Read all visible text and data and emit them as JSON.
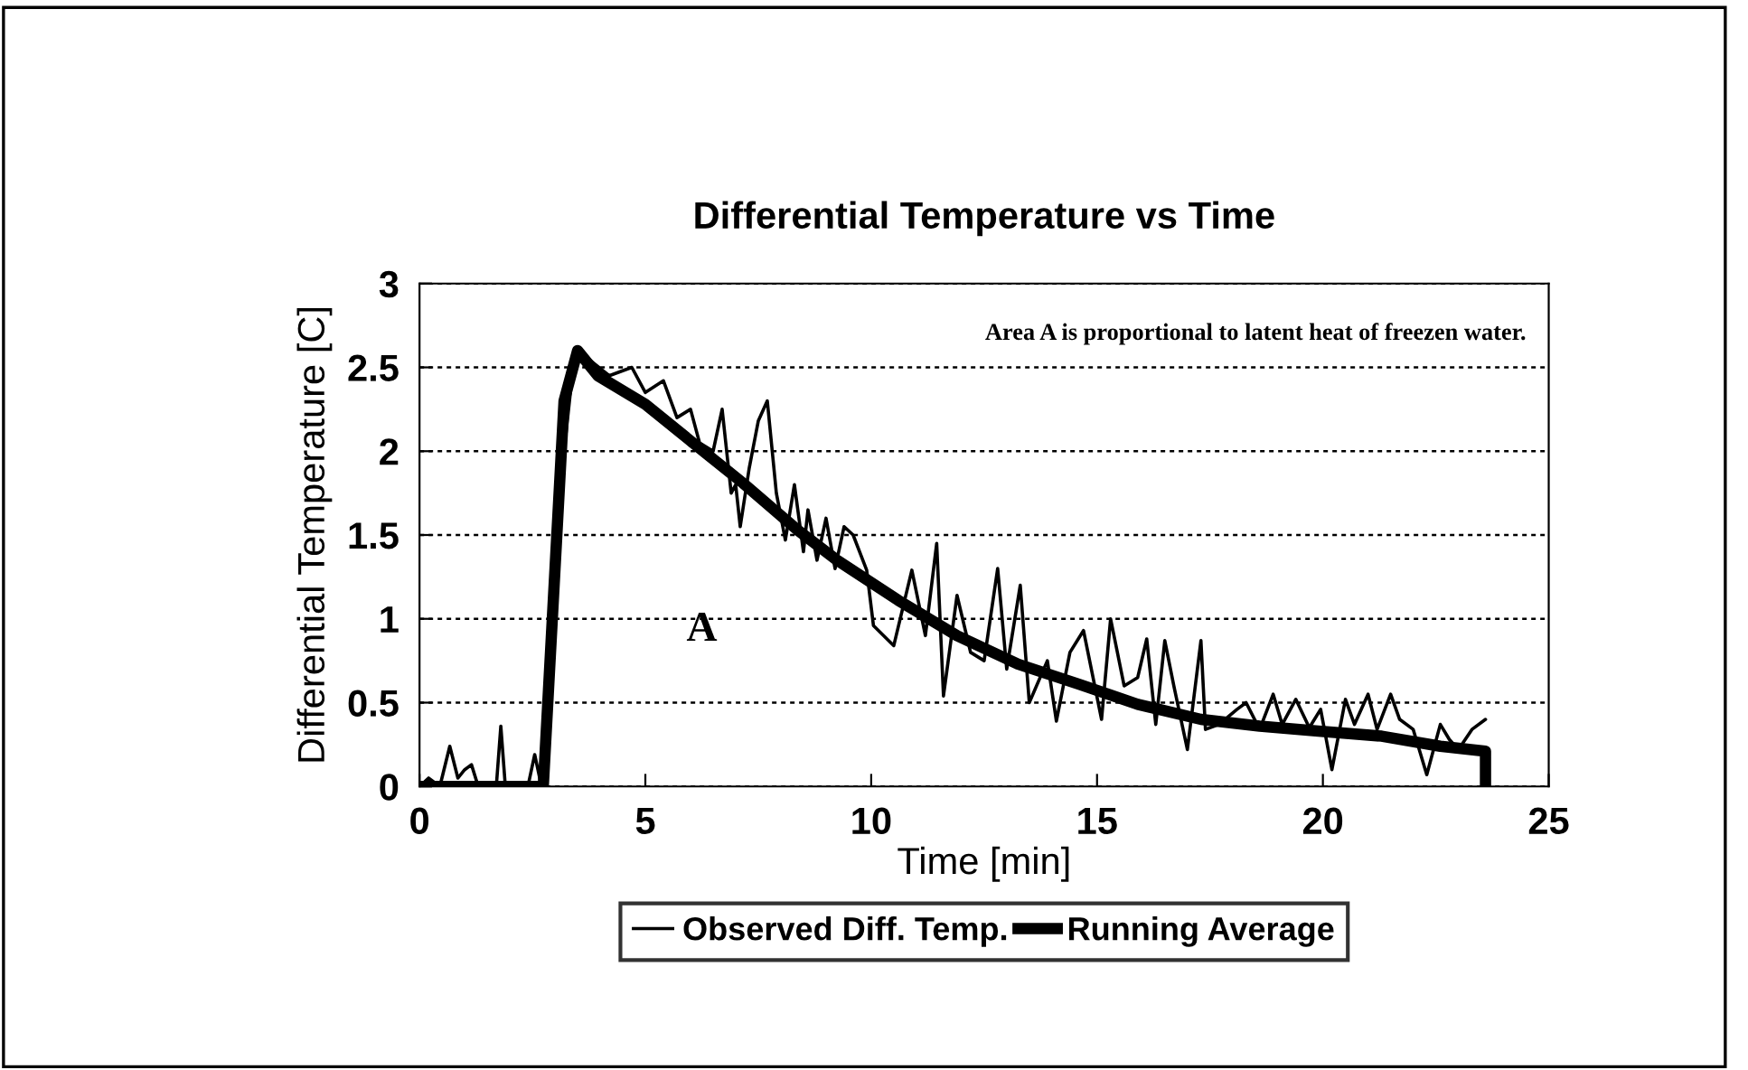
{
  "chart_data": {
    "type": "line",
    "title": "Differential Temperature vs Time",
    "xlabel": "Time [min]",
    "ylabel": "Differential Temperature [C]",
    "xlim": [
      0,
      25
    ],
    "xticks": [
      0,
      5,
      10,
      15,
      20,
      25
    ],
    "ylim": [
      0,
      3
    ],
    "yticks": [
      0,
      0.5,
      1,
      1.5,
      2,
      2.5,
      3
    ],
    "grid": "y",
    "legend": "bottom",
    "line_style": "solid",
    "marker": "none",
    "annotations": [
      "Area A is proportional to latent heat of freezen water.",
      "A"
    ],
    "series": [
      {
        "name": "Observed Diff. Temp.",
        "color": "#000000",
        "x": [
          0,
          0.2,
          0.45,
          0.67,
          0.85,
          1.0,
          1.15,
          1.3,
          1.7,
          1.8,
          1.9,
          2.4,
          2.55,
          2.7,
          2.8,
          3.0,
          3.2,
          3.4,
          3.6,
          4.2,
          4.7,
          5.0,
          5.4,
          5.7,
          6.0,
          6.2,
          6.5,
          6.7,
          6.9,
          7.0,
          7.1,
          7.3,
          7.5,
          7.7,
          7.9,
          8.1,
          8.3,
          8.5,
          8.6,
          8.8,
          9.0,
          9.2,
          9.4,
          9.6,
          9.9,
          10.05,
          10.5,
          10.9,
          11.2,
          11.45,
          11.6,
          11.9,
          12.2,
          12.5,
          12.8,
          13.0,
          13.3,
          13.5,
          13.9,
          14.1,
          14.4,
          14.7,
          15.1,
          15.3,
          15.6,
          15.9,
          16.1,
          16.3,
          16.5,
          16.7,
          17.0,
          17.3,
          17.4,
          17.7,
          18.1,
          18.3,
          18.6,
          18.9,
          19.1,
          19.4,
          19.7,
          19.95,
          20.2,
          20.5,
          20.7,
          21.0,
          21.2,
          21.5,
          21.7,
          22.0,
          22.3,
          22.6,
          22.8,
          23.0,
          23.3,
          23.6
        ],
        "values": [
          0,
          0.05,
          0,
          0.24,
          0.05,
          0.1,
          0.13,
          0,
          0,
          0.36,
          0,
          0,
          0.19,
          0,
          0.05,
          1.0,
          2.0,
          2.5,
          2.58,
          2.45,
          2.5,
          2.35,
          2.42,
          2.2,
          2.25,
          2.05,
          2.0,
          2.25,
          1.75,
          1.8,
          1.55,
          1.9,
          2.18,
          2.3,
          1.75,
          1.47,
          1.8,
          1.4,
          1.65,
          1.35,
          1.6,
          1.3,
          1.55,
          1.5,
          1.29,
          0.96,
          0.84,
          1.29,
          0.9,
          1.45,
          0.54,
          1.14,
          0.8,
          0.75,
          1.3,
          0.7,
          1.2,
          0.5,
          0.75,
          0.39,
          0.8,
          0.93,
          0.4,
          1.0,
          0.6,
          0.65,
          0.88,
          0.37,
          0.87,
          0.6,
          0.22,
          0.87,
          0.34,
          0.37,
          0.46,
          0.5,
          0.34,
          0.55,
          0.37,
          0.52,
          0.35,
          0.46,
          0.1,
          0.52,
          0.37,
          0.55,
          0.34,
          0.55,
          0.4,
          0.34,
          0.07,
          0.37,
          0.28,
          0.22,
          0.34,
          0.4
        ]
      },
      {
        "name": "Running Average",
        "color": "#000000",
        "x": [
          0,
          2.74,
          3.0,
          3.2,
          3.5,
          3.95,
          5.0,
          5.96,
          7.16,
          8.37,
          9.24,
          10.6,
          11.9,
          13.25,
          14.6,
          15.9,
          17.3,
          18.6,
          19.9,
          21.3,
          22.6,
          23.6,
          23.6
        ],
        "values": [
          0,
          0,
          1.3,
          2.3,
          2.6,
          2.45,
          2.28,
          2.07,
          1.81,
          1.53,
          1.35,
          1.11,
          0.9,
          0.73,
          0.61,
          0.49,
          0.4,
          0.36,
          0.33,
          0.3,
          0.24,
          0.21,
          0
        ]
      }
    ]
  }
}
